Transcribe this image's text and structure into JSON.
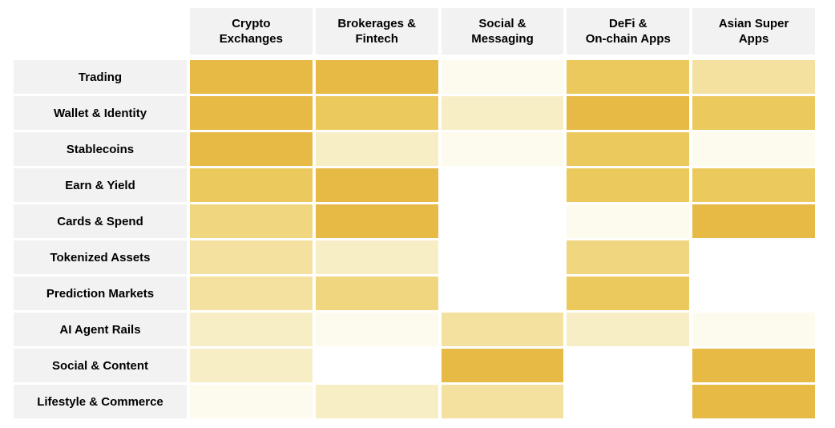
{
  "page": {
    "background": "#ffffff"
  },
  "chart_data": {
    "type": "heatmap",
    "title": "",
    "columns": [
      {
        "label": "Crypto Exchanges",
        "line1": "Crypto",
        "line2": "Exchanges"
      },
      {
        "label": "Brokerages & Fintech",
        "line1": "Brokerages &",
        "line2": "Fintech"
      },
      {
        "label": "Social & Messaging",
        "line1": "Social &",
        "line2": "Messaging"
      },
      {
        "label": "DeFi & On-chain Apps",
        "line1": "DeFi &",
        "line2": "On-chain Apps"
      },
      {
        "label": "Asian Super Apps",
        "line1": "Asian Super",
        "line2": "Apps"
      }
    ],
    "rows": [
      "Trading",
      "Wallet & Identity",
      "Stablecoins",
      "Earn & Yield",
      "Cards & Spend",
      "Tokenized Assets",
      "Prediction Markets",
      "AI Agent Rails",
      "Social & Content",
      "Lifestyle & Commerce"
    ],
    "values": [
      [
        6,
        6,
        1,
        5,
        3
      ],
      [
        6,
        5,
        2,
        6,
        5
      ],
      [
        6,
        2,
        1,
        5,
        1
      ],
      [
        5,
        6,
        0,
        5,
        5
      ],
      [
        4,
        6,
        0,
        1,
        6
      ],
      [
        3,
        2,
        0,
        4,
        0
      ],
      [
        3,
        4,
        0,
        5,
        0
      ],
      [
        2,
        1,
        3,
        2,
        1
      ],
      [
        2,
        0,
        6,
        0,
        6
      ],
      [
        1,
        2,
        3,
        0,
        6
      ]
    ],
    "scale_note": "qualitative color intensity, 0 = none (white) to 6 = strongest gold",
    "palette": {
      "0": "#ffffff",
      "1": "#fdfaee",
      "2": "#f8eec6",
      "3": "#f4e1a0",
      "4": "#f0d67e",
      "5": "#ecc95c",
      "6": "#e7b945"
    },
    "header_bg": "#f2f2f2",
    "text_color": "#000000",
    "legend_position": "none",
    "grid": false
  }
}
